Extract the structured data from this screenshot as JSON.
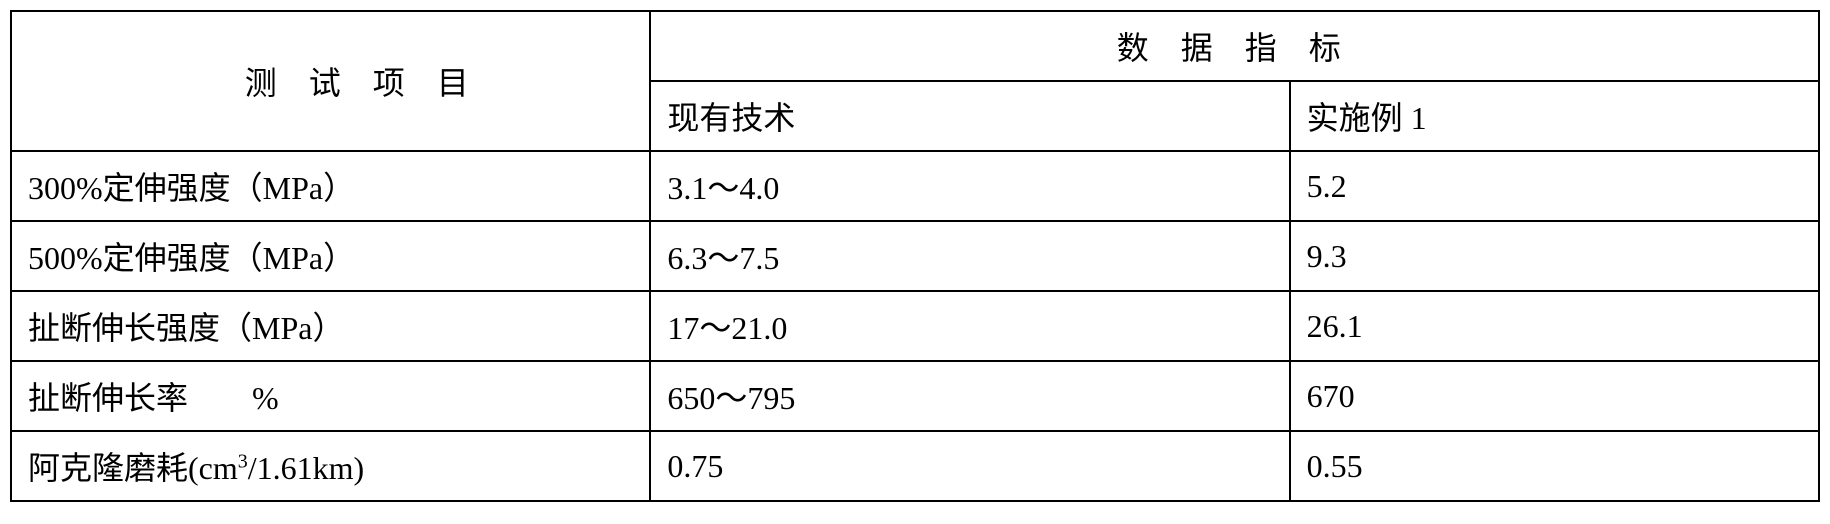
{
  "table": {
    "header_main": "测 试 项 目",
    "header_data_group": "数 据 指 标",
    "header_col1": "现有技术",
    "header_col2": "实施例 1",
    "rows": [
      {
        "label": "300%定伸强度（MPa）",
        "v1": "3.1～4.0",
        "v2": "5.2"
      },
      {
        "label": "500%定伸强度（MPa）",
        "v1": "6.3～7.5",
        "v2": "9.3"
      },
      {
        "label": "扯断伸长强度（MPa）",
        "v1": "17～21.0",
        "v2": "26.1"
      },
      {
        "label": "扯断伸长率　　%",
        "v1": "650～795",
        "v2": "670"
      },
      {
        "label_html": "阿克隆磨耗(cm<sup>3</sup>/1.61km)",
        "label": "阿克隆磨耗(cm3/1.61km)",
        "v1": "0.75",
        "v2": "0.55"
      }
    ],
    "border_color": "#000000",
    "background_color": "#ffffff",
    "text_color": "#000000",
    "font_size": 32
  }
}
